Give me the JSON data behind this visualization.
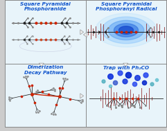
{
  "panel_bg": "#e8f4fa",
  "fig_bg": "#cccccc",
  "outer_border": "#888888",
  "title_color": "#1155cc",
  "title_fontsize": 5.2,
  "titles": [
    "Square Pyramidal\nPhosphoranide",
    "Square Pyramidal\nPhosphoranyl Radical",
    "Dimerization\nDecay Pathway",
    "Trap with Ph₂CO"
  ],
  "atom_black": "#222222",
  "atom_gray": "#888888",
  "atom_red": "#cc2200",
  "atom_blue": "#1144dd",
  "atom_lightblue": "#66aadd",
  "atom_teal": "#44aacc",
  "epr_color": "#881111",
  "arrow_face": "#eeeeee",
  "arrow_edge": "#999999"
}
